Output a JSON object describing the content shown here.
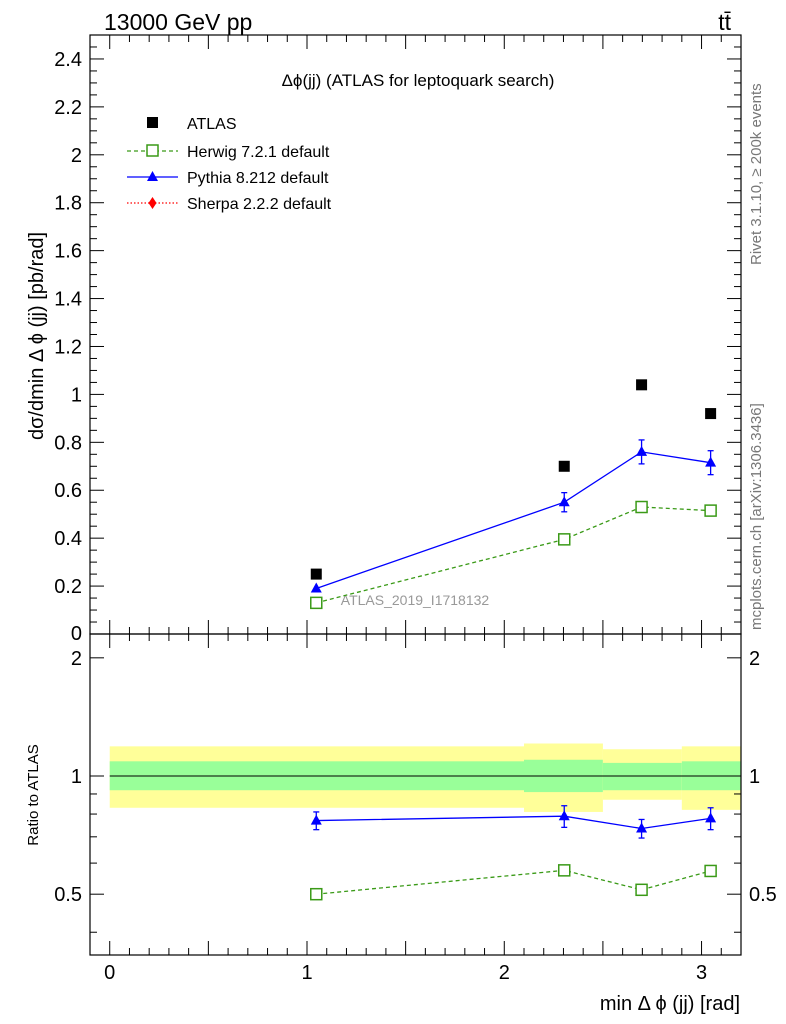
{
  "header": {
    "energy_label": "13000 GeV pp",
    "process_label": "tt̄"
  },
  "side_labels": {
    "rivet": "Rivet 3.1.10, ≥ 200k events",
    "mcplots": "mcplots.cern.ch [arXiv:1306.3436]"
  },
  "chart_data": [
    {
      "type": "scatter",
      "title": "Δϕ(jj) (ATLAS for leptoquark search)",
      "watermark": "ATLAS_2019_I1718132",
      "xlabel": "min Δ ϕ (jj) [rad]",
      "ylabel": "dσ/dmin Δ ϕ (jj) [pb/rad]",
      "xlim": [
        -0.1,
        3.2
      ],
      "ylim": [
        0,
        2.5
      ],
      "y_ticks": [
        0.2,
        0.4,
        0.6,
        0.8,
        1,
        1.2,
        1.4,
        1.6,
        1.8,
        2,
        2.2,
        2.4
      ],
      "y_tick_labels": [
        "0.2",
        "0.4",
        "0.6",
        "0.8",
        "1",
        "1.2",
        "1.4",
        "1.6",
        "1.8",
        "2",
        "2.2",
        "2.4"
      ],
      "y_zero_label": "0",
      "legend_position": "top-left",
      "series": [
        {
          "name": "ATLAS",
          "style": "data",
          "color": "#000000",
          "x": [
            1.047,
            2.304,
            2.696,
            3.046
          ],
          "y": [
            0.25,
            0.7,
            1.04,
            0.92
          ],
          "err": [
            0,
            0,
            0,
            0
          ]
        },
        {
          "name": "Herwig 7.2.1 default",
          "style": "herwig",
          "color": "#3a9a17",
          "x": [
            1.047,
            2.304,
            2.696,
            3.046
          ],
          "y": [
            0.13,
            0.395,
            0.53,
            0.515
          ],
          "err": [
            0,
            0,
            0,
            0
          ]
        },
        {
          "name": "Pythia 8.212 default",
          "style": "pythia",
          "color": "#0000ff",
          "x": [
            1.047,
            2.304,
            2.696,
            3.046
          ],
          "y": [
            0.19,
            0.55,
            0.76,
            0.715
          ],
          "err": [
            0,
            0.04,
            0.05,
            0.05
          ]
        },
        {
          "name": "Sherpa 2.2.2 default",
          "style": "sherpa",
          "color": "#ff0000",
          "x": [],
          "y": [],
          "err": []
        }
      ]
    },
    {
      "type": "scatter",
      "ylabel": "Ratio to ATLAS",
      "xlabel": "min Δ ϕ (jj) [rad]",
      "xlim": [
        -0.1,
        3.2
      ],
      "ylim": [
        0.35,
        2.3
      ],
      "y_scale": "log",
      "y_ticks": [
        0.5,
        1,
        2
      ],
      "y_tick_labels": [
        "0.5",
        "1",
        "2"
      ],
      "x_ticks": [
        0,
        1,
        2,
        3
      ],
      "x_tick_labels": [
        "0",
        "1",
        "2",
        "3"
      ],
      "bands": [
        {
          "x_low": 0.0,
          "x_high": 2.1,
          "stat_low": 0.92,
          "stat_high": 1.09,
          "tot_low": 0.83,
          "tot_high": 1.19
        },
        {
          "x_low": 2.1,
          "x_high": 2.5,
          "stat_low": 0.91,
          "stat_high": 1.1,
          "tot_low": 0.81,
          "tot_high": 1.21
        },
        {
          "x_low": 2.5,
          "x_high": 2.9,
          "stat_low": 0.92,
          "stat_high": 1.08,
          "tot_low": 0.87,
          "tot_high": 1.17
        },
        {
          "x_low": 2.9,
          "x_high": 3.2,
          "stat_low": 0.92,
          "stat_high": 1.09,
          "tot_low": 0.82,
          "tot_high": 1.19
        }
      ],
      "series": [
        {
          "name": "Herwig 7.2.1 default",
          "style": "herwig",
          "color": "#3a9a17",
          "x": [
            1.047,
            2.304,
            2.696,
            3.046
          ],
          "y": [
            0.5,
            0.575,
            0.513,
            0.573
          ],
          "err": [
            0,
            0,
            0,
            0
          ]
        },
        {
          "name": "Pythia 8.212 default",
          "style": "pythia",
          "color": "#0000ff",
          "x": [
            1.047,
            2.304,
            2.696,
            3.046
          ],
          "y": [
            0.77,
            0.79,
            0.735,
            0.78
          ],
          "err": [
            0.04,
            0.05,
            0.04,
            0.05
          ]
        }
      ]
    }
  ],
  "colors": {
    "stat_band": "#99ff99",
    "total_band": "#ffff99",
    "axis": "#000000",
    "side_text": "#777777",
    "watermark": "#999999"
  }
}
